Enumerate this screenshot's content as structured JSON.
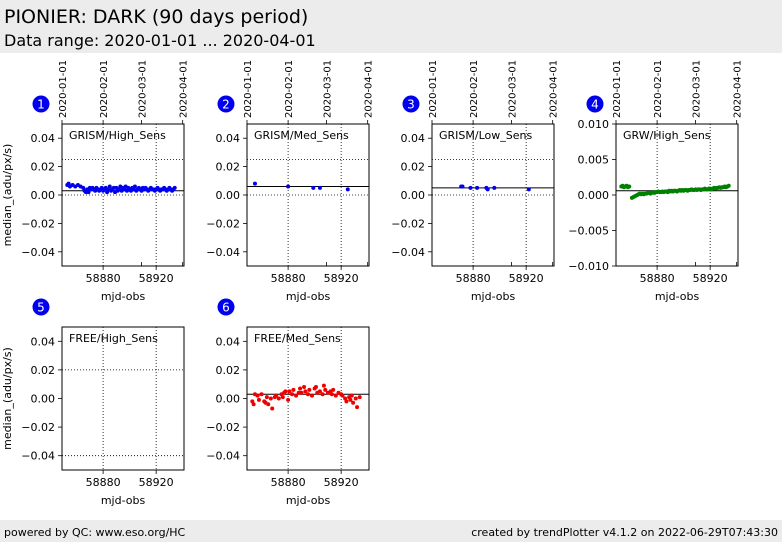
{
  "header": {
    "title": "PIONIER: DARK (90 days period)",
    "subtitle": "Data range: 2020-01-01 ... 2020-04-01"
  },
  "footer": {
    "left": "powered by QC: www.eso.org/HC",
    "right": "created by trendPlotter v4.1.2 on 2022-06-29T07:43:30"
  },
  "chart_data": [
    {
      "type": "scatter",
      "panel_number": "1",
      "label": "GRISM/High_Sens",
      "xlabel": "mjd-obs",
      "ylabel": "median_(adu/px/s)",
      "xlim": [
        58849,
        58941
      ],
      "ylim": [
        -0.05,
        0.05
      ],
      "xticks": [
        58880,
        58920
      ],
      "yticks": [
        -0.04,
        -0.02,
        0.0,
        0.02,
        0.04
      ],
      "ytick_labels": [
        "−0.04",
        "−0.02",
        "0.00",
        "0.02",
        "0.04"
      ],
      "top_ticks": [
        58849,
        58880,
        58909,
        58940
      ],
      "top_tick_labels": [
        "2020-01-01",
        "2020-02-01",
        "2020-03-01",
        "2020-04-01"
      ],
      "ref_line": 0.003,
      "dotted_lines": [
        0.025,
        0.0
      ],
      "point_color": "#0000ee",
      "x": [
        58853,
        58854,
        58855,
        58857,
        58859,
        58861,
        58863,
        58865,
        58866,
        58867,
        58868,
        58869,
        58870,
        58871,
        58872,
        58873,
        58874,
        58875,
        58876,
        58877,
        58878,
        58879,
        58880,
        58881,
        58882,
        58883,
        58884,
        58885,
        58886,
        58887,
        58888,
        58889,
        58890,
        58891,
        58892,
        58893,
        58894,
        58895,
        58896,
        58897,
        58898,
        58899,
        58900,
        58901,
        58902,
        58903,
        58904,
        58905,
        58906,
        58907,
        58908,
        58909,
        58910,
        58911,
        58912,
        58913,
        58914,
        58915,
        58916,
        58917,
        58918,
        58919,
        58920,
        58921,
        58922,
        58923,
        58924,
        58925,
        58926,
        58927,
        58928,
        58929,
        58930,
        58931,
        58932,
        58933,
        58934
      ],
      "y": [
        0.007,
        0.008,
        0.006,
        0.007,
        0.006,
        0.007,
        0.006,
        0.005,
        0.003,
        0.002,
        0.004,
        0.002,
        0.005,
        0.004,
        0.005,
        0.004,
        0.003,
        0.005,
        0.004,
        0.003,
        0.004,
        0.005,
        0.003,
        0.004,
        0.005,
        0.002,
        0.004,
        0.006,
        0.003,
        0.004,
        0.005,
        0.002,
        0.005,
        0.003,
        0.004,
        0.006,
        0.003,
        0.005,
        0.004,
        0.006,
        0.003,
        0.005,
        0.004,
        0.003,
        0.005,
        0.004,
        0.006,
        0.003,
        0.004,
        0.005,
        0.004,
        0.003,
        0.005,
        0.004,
        0.005,
        0.004,
        0.003,
        0.004,
        0.005,
        0.004,
        0.004,
        0.003,
        0.004,
        0.005,
        0.004,
        0.003,
        0.004,
        0.004,
        0.005,
        0.004,
        0.003,
        0.004,
        0.005,
        0.004,
        0.003,
        0.004,
        0.005
      ]
    },
    {
      "type": "scatter",
      "panel_number": "2",
      "label": "GRISM/Med_Sens",
      "xlabel": "mjd-obs",
      "ylabel": "",
      "xlim": [
        58849,
        58941
      ],
      "ylim": [
        -0.05,
        0.05
      ],
      "xticks": [
        58880,
        58920
      ],
      "yticks": [
        -0.04,
        -0.02,
        0.0,
        0.02,
        0.04
      ],
      "ytick_labels": [
        "−0.04",
        "−0.02",
        "0.00",
        "0.02",
        "0.04"
      ],
      "top_ticks": [
        58849,
        58880,
        58909,
        58940
      ],
      "top_tick_labels": [
        "2020-01-01",
        "2020-02-01",
        "2020-03-01",
        "2020-04-01"
      ],
      "ref_line": 0.006,
      "dotted_lines": [
        0.025,
        0.0
      ],
      "point_color": "#0000ee",
      "x": [
        58855,
        58880,
        58899,
        58904,
        58925
      ],
      "y": [
        0.008,
        0.006,
        0.005,
        0.005,
        0.004
      ]
    },
    {
      "type": "scatter",
      "panel_number": "3",
      "label": "GRISM/Low_Sens",
      "xlabel": "mjd-obs",
      "ylabel": "",
      "xlim": [
        58849,
        58941
      ],
      "ylim": [
        -0.05,
        0.05
      ],
      "xticks": [
        58880,
        58920
      ],
      "yticks": [
        -0.04,
        -0.02,
        0.0,
        0.02,
        0.04
      ],
      "ytick_labels": [
        "−0.04",
        "−0.02",
        "0.00",
        "0.02",
        "0.04"
      ],
      "top_ticks": [
        58849,
        58880,
        58909,
        58940
      ],
      "top_tick_labels": [
        "2020-01-01",
        "2020-02-01",
        "2020-03-01",
        "2020-04-01"
      ],
      "ref_line": 0.005,
      "dotted_lines": [
        0.025,
        0.0
      ],
      "point_color": "#0000ee",
      "x": [
        58871,
        58872,
        58878,
        58883,
        58890,
        58891,
        58896,
        58922
      ],
      "y": [
        0.006,
        0.006,
        0.005,
        0.005,
        0.005,
        0.004,
        0.005,
        0.004
      ]
    },
    {
      "type": "scatter",
      "panel_number": "4",
      "label": "GRW/High_Sens",
      "xlabel": "mjd-obs",
      "ylabel": "",
      "xlim": [
        58849,
        58941
      ],
      "ylim": [
        -0.01,
        0.01
      ],
      "xticks": [
        58880,
        58920
      ],
      "yticks": [
        -0.01,
        -0.005,
        0.0,
        0.005,
        0.01
      ],
      "ytick_labels": [
        "−0.010",
        "−0.005",
        "0.000",
        "0.005",
        "0.010"
      ],
      "top_ticks": [
        58849,
        58880,
        58909,
        58940
      ],
      "top_tick_labels": [
        "2020-01-01",
        "2020-02-01",
        "2020-03-01",
        "2020-04-01"
      ],
      "ref_line": 0.0006,
      "dotted_lines": [],
      "point_color": "#008000",
      "x": [
        58853,
        58854,
        58855,
        58856,
        58857,
        58858,
        58859,
        58861,
        58862,
        58863,
        58864,
        58865,
        58866,
        58867,
        58868,
        58869,
        58870,
        58871,
        58872,
        58873,
        58874,
        58875,
        58876,
        58877,
        58878,
        58879,
        58880,
        58881,
        58882,
        58883,
        58884,
        58885,
        58886,
        58887,
        58888,
        58889,
        58890,
        58891,
        58892,
        58893,
        58894,
        58895,
        58896,
        58897,
        58898,
        58899,
        58900,
        58901,
        58902,
        58903,
        58904,
        58905,
        58906,
        58907,
        58908,
        58909,
        58910,
        58911,
        58912,
        58913,
        58914,
        58915,
        58916,
        58917,
        58918,
        58919,
        58920,
        58921,
        58922,
        58923,
        58924,
        58925,
        58926,
        58927,
        58928,
        58929,
        58930,
        58931,
        58932,
        58933,
        58934
      ],
      "y": [
        0.0012,
        0.0013,
        0.0011,
        0.0012,
        0.0013,
        0.0011,
        0.0012,
        -0.0004,
        -0.0003,
        -0.0002,
        -0.0001,
        0.0,
        0.0001,
        0.0002,
        0.0001,
        0.0002,
        0.0001,
        0.0002,
        0.0002,
        0.0003,
        0.0003,
        0.0002,
        0.0003,
        0.0004,
        0.0003,
        0.0004,
        0.0004,
        0.0005,
        0.0004,
        0.0004,
        0.0005,
        0.0004,
        0.0005,
        0.0005,
        0.0004,
        0.0006,
        0.0005,
        0.0006,
        0.0005,
        0.0006,
        0.0006,
        0.0005,
        0.0006,
        0.0007,
        0.0006,
        0.0007,
        0.0006,
        0.0007,
        0.0007,
        0.0006,
        0.0007,
        0.0007,
        0.0008,
        0.0007,
        0.0007,
        0.0008,
        0.0007,
        0.0008,
        0.0008,
        0.0007,
        0.0008,
        0.0008,
        0.0009,
        0.0008,
        0.0008,
        0.0009,
        0.0009,
        0.0008,
        0.0009,
        0.001,
        0.0009,
        0.001,
        0.001,
        0.0011,
        0.001,
        0.0011,
        0.0011,
        0.0012,
        0.0011,
        0.0012,
        0.0013
      ]
    },
    {
      "type": "scatter",
      "panel_number": "5",
      "label": "FREE/High_Sens",
      "xlabel": "mjd-obs",
      "ylabel": "median_(adu/px/s)",
      "xlim": [
        58849,
        58941
      ],
      "ylim": [
        -0.05,
        0.05
      ],
      "xticks": [
        58880,
        58920
      ],
      "yticks": [
        -0.04,
        -0.02,
        0.0,
        0.02,
        0.04
      ],
      "ytick_labels": [
        "−0.04",
        "−0.02",
        "0.00",
        "0.02",
        "0.04"
      ],
      "top_ticks": [],
      "top_tick_labels": [],
      "ref_line": null,
      "dotted_lines": [
        0.02,
        -0.04
      ],
      "point_color": "#0000ee",
      "x": [],
      "y": []
    },
    {
      "type": "scatter",
      "panel_number": "6",
      "label": "FREE/Med_Sens",
      "xlabel": "mjd-obs",
      "ylabel": "",
      "xlim": [
        58849,
        58941
      ],
      "ylim": [
        -0.05,
        0.05
      ],
      "xticks": [
        58880,
        58920
      ],
      "yticks": [
        -0.04,
        -0.02,
        0.0,
        0.02,
        0.04
      ],
      "ytick_labels": [
        "−0.04",
        "−0.02",
        "0.00",
        "0.02",
        "0.04"
      ],
      "top_ticks": [],
      "top_tick_labels": [],
      "ref_line": 0.003,
      "dotted_lines": [],
      "point_color": "#ee0000",
      "x": [
        58853,
        58854,
        58855,
        58857,
        58858,
        58860,
        58862,
        58863,
        58864,
        58865,
        58867,
        58868,
        58870,
        58871,
        58873,
        58875,
        58876,
        58877,
        58878,
        58880,
        58881,
        58883,
        58884,
        58886,
        58888,
        58889,
        58890,
        58892,
        58893,
        58895,
        58896,
        58898,
        58900,
        58901,
        58902,
        58904,
        58906,
        58907,
        58908,
        58910,
        58912,
        58913,
        58914,
        58916,
        58918,
        58920,
        58921,
        58923,
        58924,
        58926,
        58927,
        58928,
        58929,
        58931,
        58932,
        58934
      ],
      "y": [
        -0.002,
        -0.004,
        0.003,
        0.002,
        -0.001,
        0.003,
        -0.002,
        -0.003,
        0.001,
        -0.004,
        0.0,
        -0.007,
        0.001,
        0.002,
        0.0,
        0.003,
        0.001,
        0.004,
        0.005,
        -0.001,
        0.005,
        0.003,
        0.006,
        0.002,
        0.004,
        0.007,
        0.004,
        0.008,
        0.005,
        0.003,
        0.006,
        0.002,
        0.007,
        0.008,
        0.004,
        0.005,
        0.003,
        0.009,
        0.006,
        0.004,
        0.005,
        0.003,
        0.006,
        0.002,
        0.004,
        0.003,
        0.002,
        0.0,
        -0.002,
        0.001,
        -0.001,
        0.002,
        -0.003,
        0.0,
        -0.006,
        0.001
      ]
    }
  ]
}
